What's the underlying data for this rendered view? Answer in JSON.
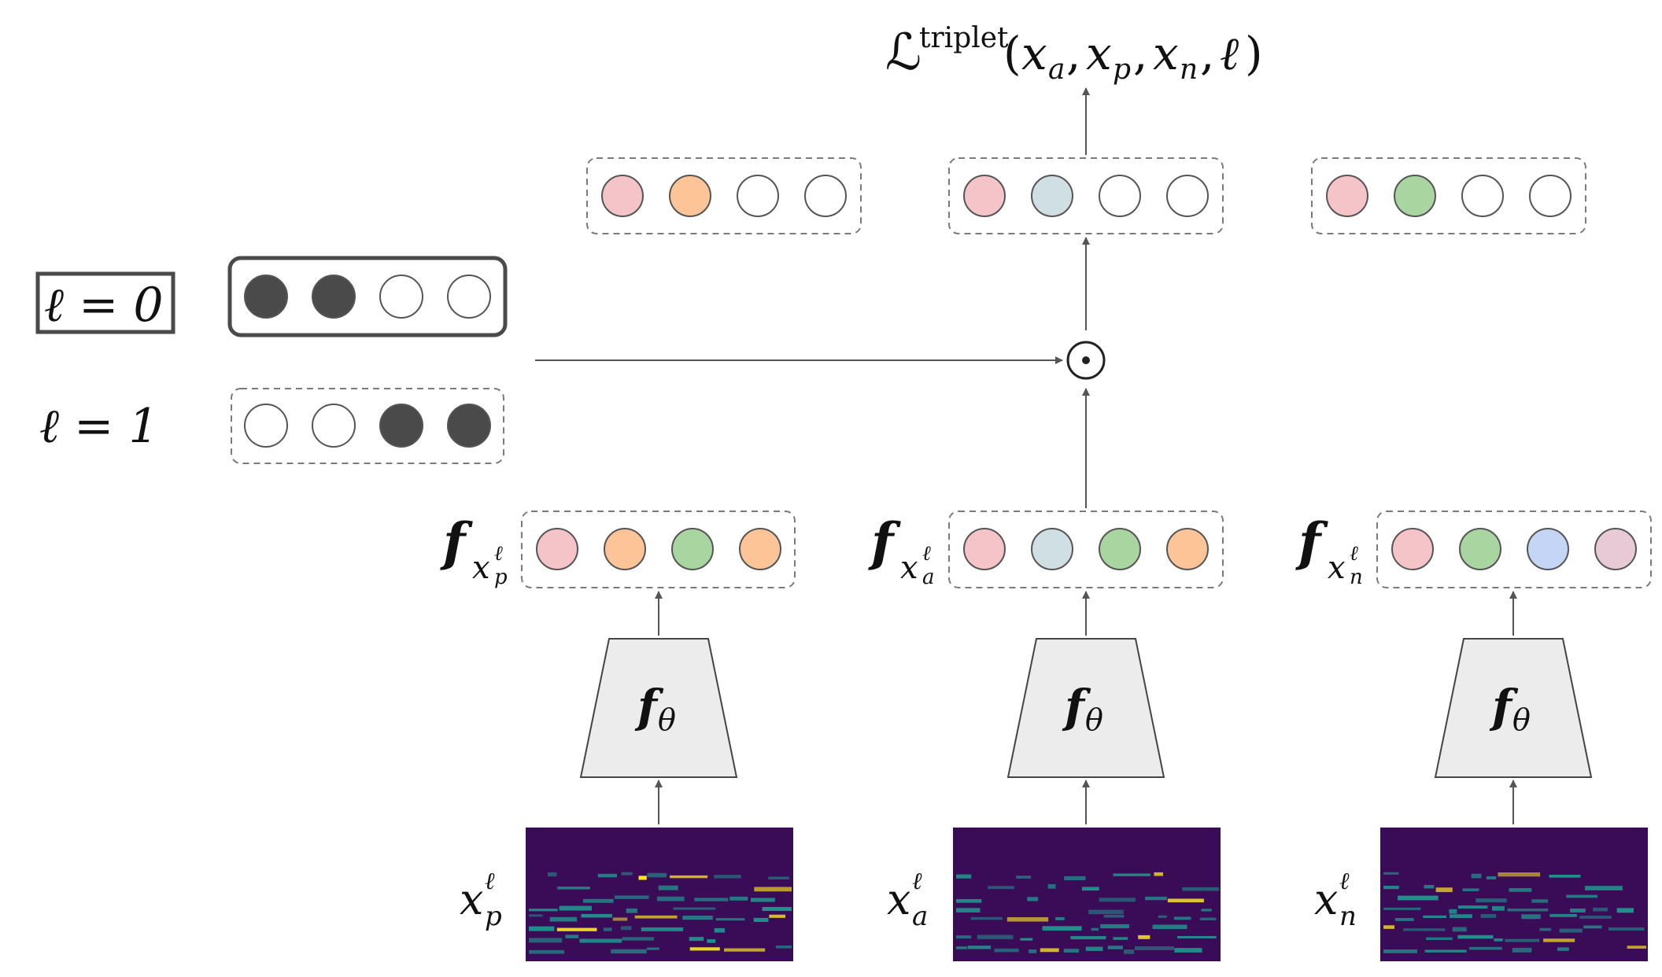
{
  "loss": {
    "symbol": "ℒ",
    "superscript": "triplet",
    "args": "(x",
    "a": "a",
    "p": "p",
    "n": "n",
    "ell": "ℓ"
  },
  "labels": {
    "l0": "ℓ = 0",
    "l1": "ℓ = 1"
  },
  "masks": {
    "l0": [
      "#4a4a4a",
      "#4a4a4a",
      "#ffffff",
      "#ffffff"
    ],
    "l1": [
      "#ffffff",
      "#ffffff",
      "#4a4a4a",
      "#4a4a4a"
    ],
    "l0_selected": true
  },
  "masked_embeddings": {
    "positive": [
      "#f4c4c8",
      "#fcc497",
      "#ffffff",
      "#ffffff"
    ],
    "anchor": [
      "#f4c4c8",
      "#cfdfe3",
      "#ffffff",
      "#ffffff"
    ],
    "negative": [
      "#f4c4c8",
      "#a8d5a0",
      "#ffffff",
      "#ffffff"
    ]
  },
  "embeddings": {
    "positive": [
      "#f4c4c8",
      "#fcc497",
      "#a8d5a0",
      "#fcc497"
    ],
    "anchor": [
      "#f4c4c8",
      "#cfdfe3",
      "#a8d5a0",
      "#fcc497"
    ],
    "negative": [
      "#f4c4c8",
      "#a8d5a0",
      "#c5d5f5",
      "#e8cad7"
    ]
  },
  "encoder": {
    "label": "fθ",
    "f": "f",
    "theta": "θ"
  },
  "feature_labels": {
    "f": "f",
    "x": "x",
    "ell": "ℓ",
    "p": "p",
    "a": "a",
    "n": "n"
  },
  "inputs": {
    "x": "x",
    "ell": "ℓ",
    "p": "p",
    "a": "a",
    "n": "n"
  },
  "operator": {
    "symbol": "⊙"
  },
  "colors": {
    "spectrogram_bg": "#3a0b57",
    "spectrogram_line": "#21918c",
    "spectrogram_hot": "#fde725",
    "encoder_fill": "#ececec",
    "dashed_border": "#7a7a7a",
    "mask_border": "#4a4a4a"
  }
}
